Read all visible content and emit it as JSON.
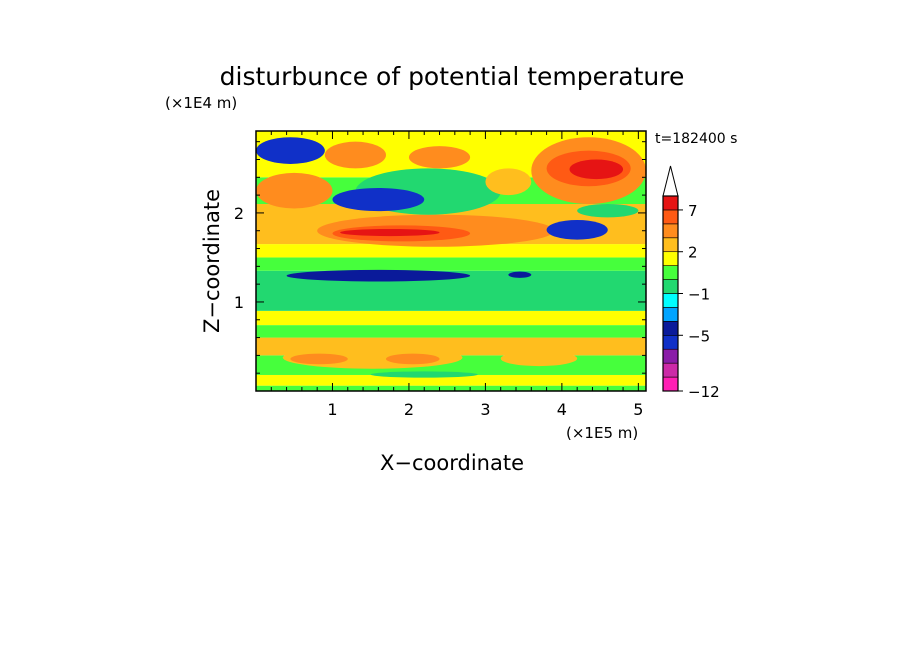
{
  "chart_data": {
    "type": "heatmap",
    "title": "disturbunce of potential temperature",
    "time_label": "t=182400 s",
    "xlabel": "X−coordinate",
    "ylabel": "Z−coordinate",
    "x_scale_label": "(×1E5 m)",
    "y_scale_label": "(×1E4 m)",
    "xlim": [
      0,
      5.1
    ],
    "ylim": [
      0,
      2.92
    ],
    "x_ticks": [
      1,
      2,
      3,
      4,
      5
    ],
    "y_ticks": [
      1,
      2
    ],
    "x_tick_labels": [
      "1",
      "2",
      "3",
      "4",
      "5"
    ],
    "y_tick_labels": [
      "1",
      "2"
    ],
    "colorbar": {
      "tick_labels": [
        "7",
        "2",
        "−1",
        "−5",
        "−12"
      ],
      "tick_values": [
        7,
        2,
        -1,
        -5,
        -12
      ],
      "levels": [
        -12,
        -10,
        -8,
        -6,
        -5,
        -3,
        -2,
        -1,
        0,
        1,
        2,
        3,
        5,
        7,
        9,
        11
      ],
      "colors": [
        "#ff1fb4",
        "#cc2aa7",
        "#8a1ca8",
        "#1030c8",
        "#0a1a9a",
        "#00a4ff",
        "#00ffff",
        "#22d870",
        "#46ff3c",
        "#ffff00",
        "#ffbe1e",
        "#ff8c1e",
        "#ff5a14",
        "#e61414",
        "#fab4b4"
      ],
      "extend": "max"
    },
    "bands": [
      {
        "z": [
          0.0,
          0.06
        ],
        "value": 0.5
      },
      {
        "z": [
          0.06,
          0.18
        ],
        "value": 1.5
      },
      {
        "z": [
          0.18,
          0.4
        ],
        "value": 0.5
      },
      {
        "z": [
          0.4,
          0.6
        ],
        "value": 2.0
      },
      {
        "z": [
          0.6,
          0.74
        ],
        "value": 0.5
      },
      {
        "z": [
          0.74,
          0.9
        ],
        "value": 1.5
      },
      {
        "z": [
          0.9,
          1.35
        ],
        "value": -0.5
      },
      {
        "z": [
          1.35,
          1.5
        ],
        "value": 0.5
      },
      {
        "z": [
          1.5,
          1.65
        ],
        "value": 1.5
      },
      {
        "z": [
          1.65,
          2.1
        ],
        "value": 2.5
      },
      {
        "z": [
          2.1,
          2.4
        ],
        "value": 0.5
      },
      {
        "z": [
          2.4,
          2.92
        ],
        "value": 1.5
      }
    ],
    "features": [
      {
        "x": [
          0.35,
          2.7
        ],
        "z": [
          0.25,
          0.5
        ],
        "value": 2.5
      },
      {
        "x": [
          0.45,
          1.2
        ],
        "z": [
          0.3,
          0.42
        ],
        "value": 4.0
      },
      {
        "x": [
          1.7,
          2.4
        ],
        "z": [
          0.3,
          0.42
        ],
        "value": 4.0
      },
      {
        "x": [
          3.2,
          4.2
        ],
        "z": [
          0.28,
          0.45
        ],
        "value": 2.5
      },
      {
        "x": [
          1.5,
          2.9
        ],
        "z": [
          0.15,
          0.22
        ],
        "value": -0.5
      },
      {
        "x": [
          0.4,
          2.8
        ],
        "z": [
          1.23,
          1.36
        ],
        "value": -4.0
      },
      {
        "x": [
          3.3,
          3.6
        ],
        "z": [
          1.27,
          1.34
        ],
        "value": -4.0
      },
      {
        "x": [
          0.8,
          3.9
        ],
        "z": [
          1.62,
          1.98
        ],
        "value": 3.5
      },
      {
        "x": [
          1.0,
          2.8
        ],
        "z": [
          1.68,
          1.86
        ],
        "value": 5.0
      },
      {
        "x": [
          1.1,
          2.4
        ],
        "z": [
          1.74,
          1.82
        ],
        "value": 7.5
      },
      {
        "x": [
          1.3,
          3.2
        ],
        "z": [
          1.98,
          2.5
        ],
        "value": -0.5
      },
      {
        "x": [
          1.0,
          2.2
        ],
        "z": [
          2.02,
          2.28
        ],
        "value": -5.5
      },
      {
        "x": [
          3.8,
          4.6
        ],
        "z": [
          1.7,
          1.92
        ],
        "value": -5.5
      },
      {
        "x": [
          0.0,
          0.9
        ],
        "z": [
          2.55,
          2.85
        ],
        "value": -5.5
      },
      {
        "x": [
          0.0,
          1.0
        ],
        "z": [
          2.05,
          2.45
        ],
        "value": 3.5
      },
      {
        "x": [
          3.6,
          5.1
        ],
        "z": [
          2.1,
          2.85
        ],
        "value": 3.5
      },
      {
        "x": [
          3.8,
          4.9
        ],
        "z": [
          2.3,
          2.7
        ],
        "value": 6.0
      },
      {
        "x": [
          4.1,
          4.8
        ],
        "z": [
          2.38,
          2.6
        ],
        "value": 8.0
      },
      {
        "x": [
          0.9,
          1.7
        ],
        "z": [
          2.5,
          2.8
        ],
        "value": 3.5
      },
      {
        "x": [
          2.0,
          2.8
        ],
        "z": [
          2.5,
          2.75
        ],
        "value": 3.0
      },
      {
        "x": [
          3.0,
          3.6
        ],
        "z": [
          2.2,
          2.5
        ],
        "value": 2.5
      },
      {
        "x": [
          4.2,
          5.0
        ],
        "z": [
          1.95,
          2.1
        ],
        "value": -0.5
      }
    ]
  }
}
